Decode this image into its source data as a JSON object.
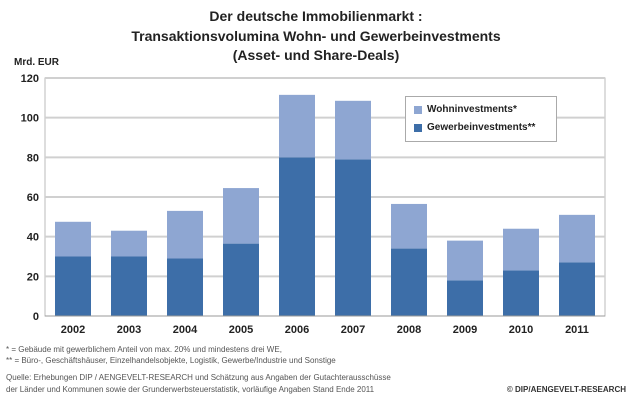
{
  "chart_data": {
    "type": "bar",
    "stacked": true,
    "title": [
      "Der deutsche Immobilienmarkt :",
      "Transaktionsvolumina Wohn- und Gewerbeinvestments",
      "(Asset- und Share-Deals)"
    ],
    "ylabel": "Mrd. EUR",
    "xlabel": "",
    "ylim": [
      0,
      120
    ],
    "yticks": [
      "0",
      "20",
      "40",
      "60",
      "80",
      "100",
      "120"
    ],
    "grid": true,
    "legend_position": "top-right",
    "categories": [
      "2002",
      "2003",
      "2004",
      "2005",
      "2006",
      "2007",
      "2008",
      "2009",
      "2010",
      "2011"
    ],
    "series": [
      {
        "name": "Gewerbeinvestments**",
        "color": "#3d6ea8",
        "values": [
          30,
          30,
          29,
          36.5,
          80,
          79,
          34,
          18,
          23,
          27
        ]
      },
      {
        "name": "Wohninvestments*",
        "color": "#8ea6d2",
        "values": [
          17.5,
          13,
          24,
          28,
          31.5,
          29.5,
          22.5,
          20,
          21,
          24
        ]
      }
    ]
  },
  "footnotes": [
    "*   = Gebäude mit gewerblichem Anteil von max. 20% und  mindestens drei WE,",
    "** =  Büro-, Geschäftshäuser, Einzelhandelsobjekte, Logistik, Gewerbe/Industrie und Sonstige",
    "Quelle: Erhebungen DIP / AENGEVELT-RESEARCH und Schätzung aus Angaben der Gutachterausschüsse",
    "der Länder und Kommunen sowie der Grunderwerbsteuerstatistik, vorläufige Angaben Stand Ende 2011"
  ],
  "copyright": "© DIP/AENGEVELT-RESEARCH"
}
